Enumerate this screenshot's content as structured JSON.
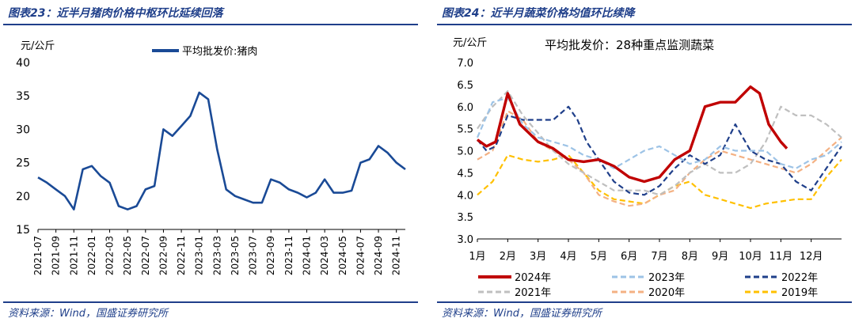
{
  "colors": {
    "accent": "#1f3f8a",
    "pork_line": "#1a4a96",
    "s2024": "#c00000",
    "s2023": "#9dc3e6",
    "s2022": "#1f3f8a",
    "s2021": "#bfbfbf",
    "s2020": "#f4b183",
    "s2019": "#ffc000"
  },
  "left": {
    "title": "图表23：近半月猪肉价格中枢环比延续回落",
    "source": "资料来源：Wind，国盛证券研究所"
  },
  "right": {
    "title": "图表24：近半月蔬菜价格均值环比续降",
    "source": "资料来源：Wind，国盛证券研究所"
  },
  "chart_data": [
    {
      "type": "line",
      "title": "",
      "ylabel": "元/公斤",
      "ylim": [
        15,
        40
      ],
      "yticks": [
        "15",
        "20",
        "25",
        "30",
        "35",
        "40"
      ],
      "xticks": [
        "2021-07",
        "2021-09",
        "2021-11",
        "2022-01",
        "2022-03",
        "2022-05",
        "2022-07",
        "2022-09",
        "2022-11",
        "2023-01",
        "2023-03",
        "2023-05",
        "2023-07",
        "2023-09",
        "2023-11",
        "2024-01",
        "2024-03",
        "2024-05",
        "2024-07",
        "2024-09",
        "2024-11"
      ],
      "xrange": [
        "2021-07",
        "2024-12"
      ],
      "legend": "top-center",
      "series": [
        {
          "name": "平均批发价:猪肉",
          "color": "#1a4a96",
          "x": [
            "2021-07",
            "2021-08",
            "2021-09",
            "2021-10",
            "2021-11",
            "2021-12",
            "2022-01",
            "2022-02",
            "2022-03",
            "2022-04",
            "2022-05",
            "2022-06",
            "2022-07",
            "2022-08",
            "2022-09",
            "2022-10",
            "2022-11",
            "2022-12",
            "2023-01",
            "2023-02",
            "2023-03",
            "2023-04",
            "2023-05",
            "2023-06",
            "2023-07",
            "2023-08",
            "2023-09",
            "2023-10",
            "2023-11",
            "2023-12",
            "2024-01",
            "2024-02",
            "2024-03",
            "2024-04",
            "2024-05",
            "2024-06",
            "2024-07",
            "2024-08",
            "2024-09",
            "2024-10",
            "2024-11",
            "2024-12"
          ],
          "values": [
            22.8,
            22.0,
            21.0,
            20.0,
            18.0,
            24.0,
            24.5,
            23.0,
            22.0,
            18.5,
            18.0,
            18.5,
            21.0,
            21.5,
            30.0,
            29.0,
            30.5,
            32.0,
            35.5,
            34.5,
            27.0,
            21.0,
            20.0,
            19.5,
            19.0,
            19.0,
            22.5,
            22.0,
            21.0,
            20.5,
            19.8,
            20.5,
            22.5,
            20.5,
            20.5,
            20.8,
            25.0,
            25.5,
            27.5,
            26.5,
            25.0,
            24.0
          ]
        }
      ]
    },
    {
      "type": "line",
      "title": "平均批发价：28种重点监测蔬菜",
      "ylabel": "元/公斤",
      "ylim": [
        3.0,
        7.0
      ],
      "yticks": [
        "3.0",
        "3.5",
        "4.0",
        "4.5",
        "5.0",
        "5.5",
        "6.0",
        "6.5",
        "7.0"
      ],
      "categories": [
        "1月",
        "2月",
        "3月",
        "4月",
        "5月",
        "6月",
        "7月",
        "8月",
        "9月",
        "10月",
        "11月",
        "12月"
      ],
      "legend": "bottom",
      "series": [
        {
          "name": "2024年",
          "color": "#c00000",
          "style": "solid",
          "x": [
            1.0,
            1.3,
            1.6,
            2.0,
            2.4,
            3.0,
            3.5,
            4.0,
            4.5,
            5.0,
            5.5,
            6.0,
            6.5,
            7.0,
            7.5,
            8.0,
            8.5,
            9.0,
            9.5,
            10.0,
            10.3,
            10.6,
            11.0,
            11.2
          ],
          "values": [
            5.25,
            5.1,
            5.2,
            6.3,
            5.6,
            5.2,
            5.05,
            4.8,
            4.75,
            4.8,
            4.65,
            4.4,
            4.3,
            4.4,
            4.8,
            5.0,
            6.0,
            6.1,
            6.1,
            6.45,
            6.3,
            5.6,
            5.2,
            5.05
          ]
        },
        {
          "name": "2023年",
          "color": "#9dc3e6",
          "style": "dash",
          "x": [
            1.0,
            1.5,
            2.0,
            2.5,
            3.0,
            3.5,
            4.0,
            4.5,
            5.0,
            5.5,
            6.0,
            6.5,
            7.0,
            7.5,
            8.0,
            8.5,
            9.0,
            9.5,
            10.0,
            10.5,
            11.0,
            11.5,
            12.0,
            12.5,
            13.0
          ],
          "values": [
            5.3,
            6.1,
            6.2,
            5.6,
            5.3,
            5.2,
            5.1,
            4.9,
            4.8,
            4.6,
            4.8,
            5.0,
            5.1,
            4.9,
            4.7,
            4.8,
            5.1,
            5.0,
            5.0,
            5.0,
            4.7,
            4.6,
            4.8,
            4.9,
            5.2
          ]
        },
        {
          "name": "2022年",
          "color": "#1f3f8a",
          "style": "dash",
          "x": [
            1.0,
            1.3,
            1.6,
            2.0,
            2.5,
            3.0,
            3.5,
            4.0,
            4.3,
            4.6,
            5.0,
            5.5,
            6.0,
            6.5,
            7.0,
            7.5,
            8.0,
            8.5,
            9.0,
            9.5,
            10.0,
            10.5,
            11.0,
            11.5,
            12.0,
            12.5,
            13.0
          ],
          "values": [
            5.25,
            5.0,
            5.1,
            5.8,
            5.7,
            5.7,
            5.7,
            6.0,
            5.7,
            5.2,
            4.8,
            4.3,
            4.05,
            4.0,
            4.2,
            4.6,
            4.9,
            4.7,
            4.9,
            5.6,
            5.0,
            4.8,
            4.7,
            4.3,
            4.1,
            4.6,
            5.1
          ]
        },
        {
          "name": "2021年",
          "color": "#bfbfbf",
          "style": "dash",
          "x": [
            1.0,
            1.5,
            2.0,
            2.5,
            3.0,
            3.5,
            4.0,
            4.5,
            5.0,
            5.5,
            6.0,
            6.5,
            7.0,
            7.5,
            8.0,
            8.5,
            9.0,
            9.5,
            10.0,
            10.5,
            11.0,
            11.5,
            12.0,
            12.5,
            13.0
          ],
          "values": [
            5.5,
            6.0,
            6.35,
            5.8,
            5.4,
            5.0,
            4.7,
            4.5,
            4.3,
            4.1,
            4.1,
            4.1,
            4.0,
            4.2,
            4.5,
            4.7,
            4.5,
            4.5,
            4.7,
            5.2,
            6.0,
            5.8,
            5.8,
            5.6,
            5.3
          ]
        },
        {
          "name": "2020年",
          "color": "#f4b183",
          "style": "dash",
          "x": [
            1.0,
            1.5,
            2.0,
            2.5,
            3.0,
            3.5,
            4.0,
            4.5,
            5.0,
            5.5,
            6.0,
            6.5,
            7.0,
            7.5,
            8.0,
            8.5,
            9.0,
            9.5,
            10.0,
            10.5,
            11.0,
            11.5,
            12.0,
            12.5,
            13.0
          ],
          "values": [
            4.8,
            5.0,
            5.9,
            5.7,
            5.2,
            5.0,
            4.8,
            4.5,
            4.0,
            3.85,
            3.75,
            3.8,
            4.0,
            4.1,
            4.5,
            4.8,
            5.0,
            4.9,
            4.8,
            4.7,
            4.6,
            4.5,
            4.7,
            5.0,
            5.3
          ]
        },
        {
          "name": "2019年",
          "color": "#ffc000",
          "style": "dash",
          "x": [
            1.0,
            1.5,
            2.0,
            2.5,
            3.0,
            3.5,
            4.0,
            4.5,
            5.0,
            5.5,
            6.0,
            6.5,
            7.0,
            7.5,
            8.0,
            8.5,
            9.0,
            9.5,
            10.0,
            10.5,
            11.0,
            11.5,
            12.0,
            12.5,
            13.0
          ],
          "values": [
            4.0,
            4.3,
            4.9,
            4.8,
            4.75,
            4.8,
            4.9,
            4.5,
            4.1,
            3.9,
            3.85,
            3.8,
            4.0,
            4.2,
            4.3,
            4.0,
            3.9,
            3.8,
            3.7,
            3.8,
            3.85,
            3.9,
            3.9,
            4.4,
            4.8
          ]
        }
      ]
    }
  ]
}
